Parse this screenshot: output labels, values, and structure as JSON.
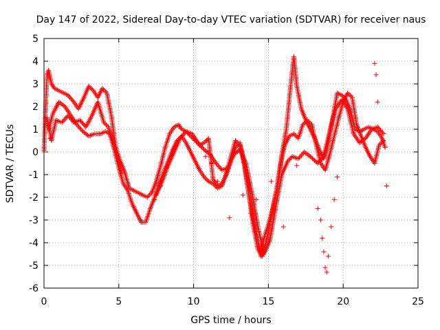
{
  "chart_data": {
    "type": "scatter",
    "title": "Day 147 of 2022, Sidereal Day-to-day VTEC variation (SDTVAR) for receiver naus",
    "xlabel": "GPS time / hours",
    "ylabel": "SDTVAR / TECUs",
    "xlim": [
      0,
      25
    ],
    "ylim": [
      -6,
      5
    ],
    "xticks": [
      "0",
      "5",
      "10",
      "15",
      "20",
      "25"
    ],
    "yticks": [
      "-6",
      "-5",
      "-4",
      "-3",
      "-2",
      "-1",
      "0",
      "1",
      "2",
      "3",
      "4",
      "5"
    ],
    "grid": true,
    "marker": "+",
    "color": "#ff0000",
    "series": [
      {
        "x": [
          0.0,
          0.1,
          0.2,
          0.3,
          0.4,
          0.5,
          0.7,
          1.0,
          1.3,
          1.6,
          2.0,
          2.3,
          2.6,
          3.0,
          3.3,
          3.6,
          3.9,
          4.2,
          4.5,
          4.8,
          5.1,
          5.4,
          5.7,
          6.0,
          6.3,
          6.6,
          6.9,
          7.2,
          7.5,
          7.8,
          8.1,
          8.4,
          8.7,
          9.0,
          9.2,
          9.5,
          9.8,
          10.1,
          10.4,
          10.7,
          11.0,
          11.3,
          11.6,
          11.9,
          12.2,
          12.5,
          12.8,
          13.1,
          13.4,
          13.7,
          14.0,
          14.3,
          14.5,
          14.7,
          15.0,
          15.3,
          15.6,
          15.9,
          16.2,
          16.5,
          16.7,
          16.9,
          17.2,
          17.5,
          17.8,
          18.1,
          18.4,
          18.7,
          19.0,
          19.3,
          19.6,
          19.9,
          20.2,
          20.5,
          20.8,
          21.1,
          21.4,
          21.7,
          22.0,
          22.3,
          22.6,
          22.8
        ],
        "y": [
          0.0,
          1.8,
          3.4,
          3.6,
          3.3,
          3.0,
          2.8,
          2.7,
          2.6,
          2.5,
          2.2,
          1.9,
          2.3,
          2.9,
          2.7,
          2.4,
          2.8,
          2.6,
          1.6,
          0.2,
          -0.4,
          -0.9,
          -1.6,
          -1.7,
          -1.8,
          -1.9,
          -2.0,
          -1.8,
          -1.3,
          -0.6,
          0.2,
          0.8,
          1.1,
          1.2,
          1.0,
          0.9,
          0.7,
          0.5,
          0.3,
          0.4,
          0.6,
          -1.2,
          -1.5,
          -1.4,
          -1.0,
          -0.4,
          0.2,
          0.4,
          -0.5,
          -1.9,
          -3.0,
          -3.9,
          -4.6,
          -3.8,
          -3.2,
          -2.5,
          -1.6,
          -0.1,
          1.0,
          3.0,
          4.2,
          2.9,
          1.9,
          1.4,
          1.0,
          0.6,
          0.1,
          -0.3,
          0.4,
          1.5,
          2.6,
          2.5,
          2.3,
          1.8,
          1.0,
          0.9,
          1.0,
          1.1,
          1.0,
          0.9,
          0.6,
          0.2
        ]
      },
      {
        "x": [
          0.3,
          0.6,
          1.0,
          1.4,
          1.8,
          2.2,
          2.6,
          3.0,
          3.4,
          3.8,
          4.1,
          4.4,
          4.7,
          5.0,
          5.3,
          5.6,
          5.9,
          6.2,
          6.5,
          6.8,
          7.1,
          7.4,
          7.7,
          8.0,
          8.3,
          8.6,
          8.9,
          9.2,
          9.5,
          9.8,
          10.1,
          10.4,
          10.7,
          11.0,
          11.3,
          11.6,
          11.9,
          12.2,
          12.5,
          12.8,
          13.1,
          13.4,
          13.7,
          14.0,
          14.3,
          14.6,
          14.9,
          15.2,
          15.5,
          15.8,
          16.1,
          16.4,
          16.7,
          17.0,
          17.3,
          17.6,
          17.9,
          18.2,
          18.5,
          18.8,
          19.1,
          19.4,
          19.7,
          20.0,
          20.3,
          20.6,
          20.9,
          21.2,
          21.5,
          21.8,
          22.1,
          22.4,
          22.7
        ],
        "y": [
          1.0,
          1.7,
          2.2,
          2.0,
          1.6,
          1.2,
          0.9,
          0.7,
          0.8,
          0.8,
          0.9,
          0.8,
          0.1,
          -0.7,
          -1.4,
          -1.7,
          -2.3,
          -2.7,
          -3.1,
          -3.1,
          -2.5,
          -2.0,
          -1.4,
          -0.9,
          -0.4,
          0.1,
          0.5,
          0.7,
          0.4,
          0.0,
          -0.4,
          -0.8,
          -1.1,
          -1.3,
          -1.4,
          -1.6,
          -1.5,
          -0.9,
          -0.2,
          0.5,
          0.3,
          -0.6,
          -1.9,
          -3.3,
          -4.3,
          -4.6,
          -3.8,
          -2.8,
          -1.8,
          -0.6,
          0.3,
          0.7,
          0.8,
          0.6,
          1.2,
          1.4,
          1.2,
          0.3,
          -0.5,
          -0.8,
          -0.1,
          0.7,
          1.5,
          2.2,
          2.6,
          2.4,
          1.2,
          0.7,
          0.2,
          -0.2,
          -0.5,
          0.3,
          0.5
        ]
      },
      {
        "x": [
          0.2,
          0.5,
          0.8,
          1.2,
          1.6,
          2.0,
          2.4,
          2.8,
          3.2,
          3.6,
          4.0,
          4.3,
          4.6,
          4.9,
          5.2,
          7.5,
          7.9,
          8.3,
          8.7,
          9.1,
          9.5,
          9.9,
          10.3,
          10.7,
          11.1,
          11.5,
          11.9,
          12.3,
          12.7,
          13.1,
          13.5,
          13.9,
          14.3,
          14.7,
          15.1,
          15.5,
          15.9,
          16.3,
          16.6,
          17.0,
          17.4,
          17.8,
          18.3,
          18.7,
          19.1,
          19.5,
          19.9,
          20.3,
          20.7,
          21.1,
          21.5,
          21.9,
          22.3,
          22.7
        ],
        "y": [
          1.5,
          0.5,
          1.4,
          1.3,
          1.6,
          1.3,
          1.4,
          1.1,
          1.6,
          2.2,
          1.3,
          1.1,
          0.5,
          -0.3,
          -0.9,
          -1.9,
          -1.3,
          -0.6,
          0.0,
          0.6,
          0.9,
          0.8,
          0.4,
          0.1,
          -0.1,
          -0.5,
          -0.8,
          -0.7,
          -0.1,
          0.1,
          -0.5,
          -1.8,
          -3.3,
          -4.5,
          -3.9,
          -2.4,
          -1.0,
          -0.4,
          -0.2,
          -0.3,
          0.0,
          -0.2,
          -0.5,
          -0.2,
          0.9,
          1.9,
          2.3,
          1.9,
          0.8,
          0.4,
          0.6,
          1.0,
          1.1,
          0.8
        ]
      },
      {
        "x": [
          0.1,
          0.4,
          7.4,
          7.8,
          8.2,
          10.8,
          11.2,
          11.6,
          12.4,
          13.3,
          13.8,
          14.2,
          15.2,
          16.0,
          16.9,
          18.3,
          18.5,
          18.6,
          18.7,
          18.8,
          18.9,
          19.0,
          19.2,
          19.4,
          19.6,
          22.1,
          22.2,
          22.3,
          22.9
        ],
        "y": [
          2.0,
          0.6,
          -2.1,
          -1.5,
          -0.7,
          -0.2,
          -0.5,
          -1.3,
          -2.9,
          -1.9,
          -2.7,
          -2.1,
          -1.3,
          -3.3,
          -0.6,
          -2.5,
          -3.0,
          -3.8,
          -4.4,
          -5.1,
          -5.3,
          -4.6,
          -3.3,
          -2.1,
          -1.1,
          3.9,
          3.4,
          2.2,
          -1.5
        ]
      }
    ]
  }
}
